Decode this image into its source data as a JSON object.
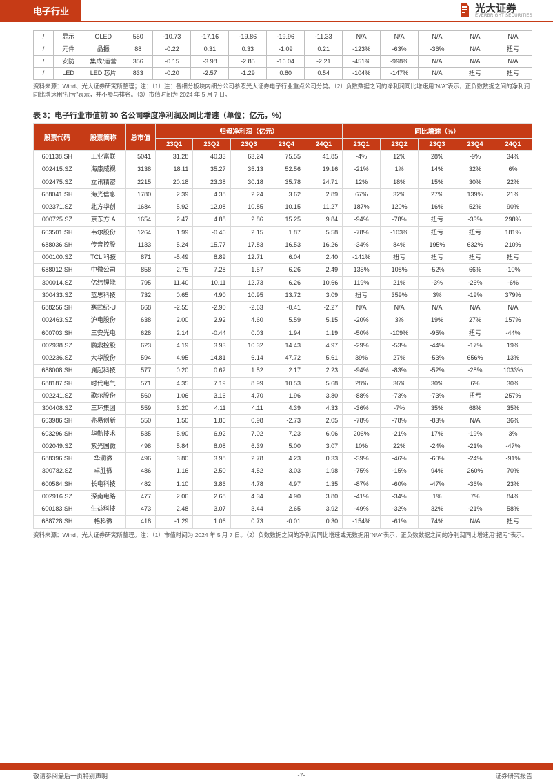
{
  "header": {
    "section_title": "电子行业",
    "brand_cn": "光大证券",
    "brand_en": "EVERBRIGHT SECURITIES",
    "brand_accent": "#c63b16"
  },
  "small_table": {
    "rows": [
      [
        "/",
        "显示",
        "OLED",
        "550",
        "-10.73",
        "-17.16",
        "-19.86",
        "-19.96",
        "-11.33",
        "N/A",
        "N/A",
        "N/A",
        "N/A",
        "N/A"
      ],
      [
        "/",
        "元件",
        "晶振",
        "88",
        "-0.22",
        "0.31",
        "0.33",
        "-1.09",
        "0.21",
        "-123%",
        "-63%",
        "-36%",
        "N/A",
        "扭亏"
      ],
      [
        "/",
        "安防",
        "集成/运营",
        "356",
        "-0.15",
        "-3.98",
        "-2.85",
        "-16.04",
        "-2.21",
        "-451%",
        "-998%",
        "N/A",
        "N/A",
        "N/A"
      ],
      [
        "/",
        "LED",
        "LED 芯片",
        "833",
        "-0.20",
        "-2.57",
        "-1.29",
        "0.80",
        "0.54",
        "-104%",
        "-147%",
        "N/A",
        "扭亏",
        "扭亏"
      ]
    ],
    "note": "资料来源：Wind、光大证券研究所整理；注：（1）注：各细分板块内细分公司参照光大证券电子行业重点公司分类。（2）负数数据之间的净利润同比增速用“N/A”表示，正负数数据之间的净利润同比增速用“扭亏”表示，并不参与排名。（3）市值时间为 2024 年 5 月 7 日。"
  },
  "big_table": {
    "title": "表 3：电子行业市值前 30 名公司季度净利润及同比增速（单位：亿元，%）",
    "head_row1": [
      "股票代码",
      "股票简称",
      "总市值",
      "归母净利润（亿元）",
      "同比增速（%）"
    ],
    "head_row2": [
      "23Q1",
      "23Q2",
      "23Q3",
      "23Q4",
      "24Q1",
      "23Q1",
      "23Q2",
      "23Q3",
      "23Q4",
      "24Q1"
    ],
    "col_widths_pct": [
      9.5,
      9,
      6,
      7.5,
      7.5,
      7.5,
      7.5,
      7.5,
      7.6,
      7.6,
      7.6,
      7.6,
      7.6
    ],
    "rows": [
      [
        "601138.SH",
        "工业富联",
        "5041",
        "31.28",
        "40.33",
        "63.24",
        "75.55",
        "41.85",
        "-4%",
        "12%",
        "28%",
        "-9%",
        "34%"
      ],
      [
        "002415.SZ",
        "海康威视",
        "3138",
        "18.11",
        "35.27",
        "35.13",
        "52.56",
        "19.16",
        "-21%",
        "1%",
        "14%",
        "32%",
        "6%"
      ],
      [
        "002475.SZ",
        "立讯精密",
        "2215",
        "20.18",
        "23.38",
        "30.18",
        "35.78",
        "24.71",
        "12%",
        "18%",
        "15%",
        "30%",
        "22%"
      ],
      [
        "688041.SH",
        "海光信息",
        "1780",
        "2.39",
        "4.38",
        "2.24",
        "3.62",
        "2.89",
        "67%",
        "32%",
        "27%",
        "139%",
        "21%"
      ],
      [
        "002371.SZ",
        "北方华创",
        "1684",
        "5.92",
        "12.08",
        "10.85",
        "10.15",
        "11.27",
        "187%",
        "120%",
        "16%",
        "52%",
        "90%"
      ],
      [
        "000725.SZ",
        "京东方 A",
        "1654",
        "2.47",
        "4.88",
        "2.86",
        "15.25",
        "9.84",
        "-94%",
        "-78%",
        "扭亏",
        "-33%",
        "298%"
      ],
      [
        "603501.SH",
        "韦尔股份",
        "1264",
        "1.99",
        "-0.46",
        "2.15",
        "1.87",
        "5.58",
        "-78%",
        "-103%",
        "扭亏",
        "扭亏",
        "181%"
      ],
      [
        "688036.SH",
        "传音控股",
        "1133",
        "5.24",
        "15.77",
        "17.83",
        "16.53",
        "16.26",
        "-34%",
        "84%",
        "195%",
        "632%",
        "210%"
      ],
      [
        "000100.SZ",
        "TCL 科技",
        "871",
        "-5.49",
        "8.89",
        "12.71",
        "6.04",
        "2.40",
        "-141%",
        "扭亏",
        "扭亏",
        "扭亏",
        "扭亏"
      ],
      [
        "688012.SH",
        "中微公司",
        "858",
        "2.75",
        "7.28",
        "1.57",
        "6.26",
        "2.49",
        "135%",
        "108%",
        "-52%",
        "66%",
        "-10%"
      ],
      [
        "300014.SZ",
        "亿纬锂能",
        "795",
        "11.40",
        "10.11",
        "12.73",
        "6.26",
        "10.66",
        "119%",
        "21%",
        "-3%",
        "-26%",
        "-6%"
      ],
      [
        "300433.SZ",
        "蓝思科技",
        "732",
        "0.65",
        "4.90",
        "10.95",
        "13.72",
        "3.09",
        "扭亏",
        "359%",
        "3%",
        "-19%",
        "379%"
      ],
      [
        "688256.SH",
        "寒武纪-U",
        "668",
        "-2.55",
        "-2.90",
        "-2.63",
        "-0.41",
        "-2.27",
        "N/A",
        "N/A",
        "N/A",
        "N/A",
        "N/A"
      ],
      [
        "002463.SZ",
        "沪电股份",
        "638",
        "2.00",
        "2.92",
        "4.60",
        "5.59",
        "5.15",
        "-20%",
        "3%",
        "19%",
        "27%",
        "157%"
      ],
      [
        "600703.SH",
        "三安光电",
        "628",
        "2.14",
        "-0.44",
        "0.03",
        "1.94",
        "1.19",
        "-50%",
        "-109%",
        "-95%",
        "扭亏",
        "-44%"
      ],
      [
        "002938.SZ",
        "鹏鼎控股",
        "623",
        "4.19",
        "3.93",
        "10.32",
        "14.43",
        "4.97",
        "-29%",
        "-53%",
        "-44%",
        "-17%",
        "19%"
      ],
      [
        "002236.SZ",
        "大华股份",
        "594",
        "4.95",
        "14.81",
        "6.14",
        "47.72",
        "5.61",
        "39%",
        "27%",
        "-53%",
        "656%",
        "13%"
      ],
      [
        "688008.SH",
        "澜起科技",
        "577",
        "0.20",
        "0.62",
        "1.52",
        "2.17",
        "2.23",
        "-94%",
        "-83%",
        "-52%",
        "-28%",
        "1033%"
      ],
      [
        "688187.SH",
        "时代电气",
        "571",
        "4.35",
        "7.19",
        "8.99",
        "10.53",
        "5.68",
        "28%",
        "36%",
        "30%",
        "6%",
        "30%"
      ],
      [
        "002241.SZ",
        "歌尔股份",
        "560",
        "1.06",
        "3.16",
        "4.70",
        "1.96",
        "3.80",
        "-88%",
        "-73%",
        "-73%",
        "扭亏",
        "257%"
      ],
      [
        "300408.SZ",
        "三环集团",
        "559",
        "3.20",
        "4.11",
        "4.11",
        "4.39",
        "4.33",
        "-36%",
        "-7%",
        "35%",
        "68%",
        "35%"
      ],
      [
        "603986.SH",
        "兆易创新",
        "550",
        "1.50",
        "1.86",
        "0.98",
        "-2.73",
        "2.05",
        "-78%",
        "-78%",
        "-83%",
        "N/A",
        "36%"
      ],
      [
        "603296.SH",
        "华勤技术",
        "535",
        "5.90",
        "6.92",
        "7.02",
        "7.23",
        "6.06",
        "206%",
        "-21%",
        "17%",
        "-19%",
        "3%"
      ],
      [
        "002049.SZ",
        "紫光国微",
        "498",
        "5.84",
        "8.08",
        "6.39",
        "5.00",
        "3.07",
        "10%",
        "22%",
        "-24%",
        "-21%",
        "-47%"
      ],
      [
        "688396.SH",
        "华润微",
        "496",
        "3.80",
        "3.98",
        "2.78",
        "4.23",
        "0.33",
        "-39%",
        "-46%",
        "-60%",
        "-24%",
        "-91%"
      ],
      [
        "300782.SZ",
        "卓胜微",
        "486",
        "1.16",
        "2.50",
        "4.52",
        "3.03",
        "1.98",
        "-75%",
        "-15%",
        "94%",
        "260%",
        "70%"
      ],
      [
        "600584.SH",
        "长电科技",
        "482",
        "1.10",
        "3.86",
        "4.78",
        "4.97",
        "1.35",
        "-87%",
        "-60%",
        "-47%",
        "-36%",
        "23%"
      ],
      [
        "002916.SZ",
        "深南电路",
        "477",
        "2.06",
        "2.68",
        "4.34",
        "4.90",
        "3.80",
        "-41%",
        "-34%",
        "1%",
        "7%",
        "84%"
      ],
      [
        "600183.SH",
        "生益科技",
        "473",
        "2.48",
        "3.07",
        "3.44",
        "2.65",
        "3.92",
        "-49%",
        "-32%",
        "32%",
        "-21%",
        "58%"
      ],
      [
        "688728.SH",
        "格科微",
        "418",
        "-1.29",
        "1.06",
        "0.73",
        "-0.01",
        "0.30",
        "-154%",
        "-61%",
        "74%",
        "N/A",
        "扭亏"
      ]
    ],
    "note": "资料来源：Wind、光大证券研究所整理。注：（1）市值时间为 2024 年 5 月 7 日。（2）负数数据之间的净利润同比增速或无数据用“N/A”表示，正负数数据之间的净利润同比增速用“扭亏”表示。"
  },
  "footer": {
    "left": "敬请参阅最后一页特别声明",
    "center": "-7-",
    "right": "证券研究报告"
  },
  "colors": {
    "accent": "#c63b16",
    "border": "#bfbfbf",
    "text": "#333333",
    "muted": "#555555"
  }
}
